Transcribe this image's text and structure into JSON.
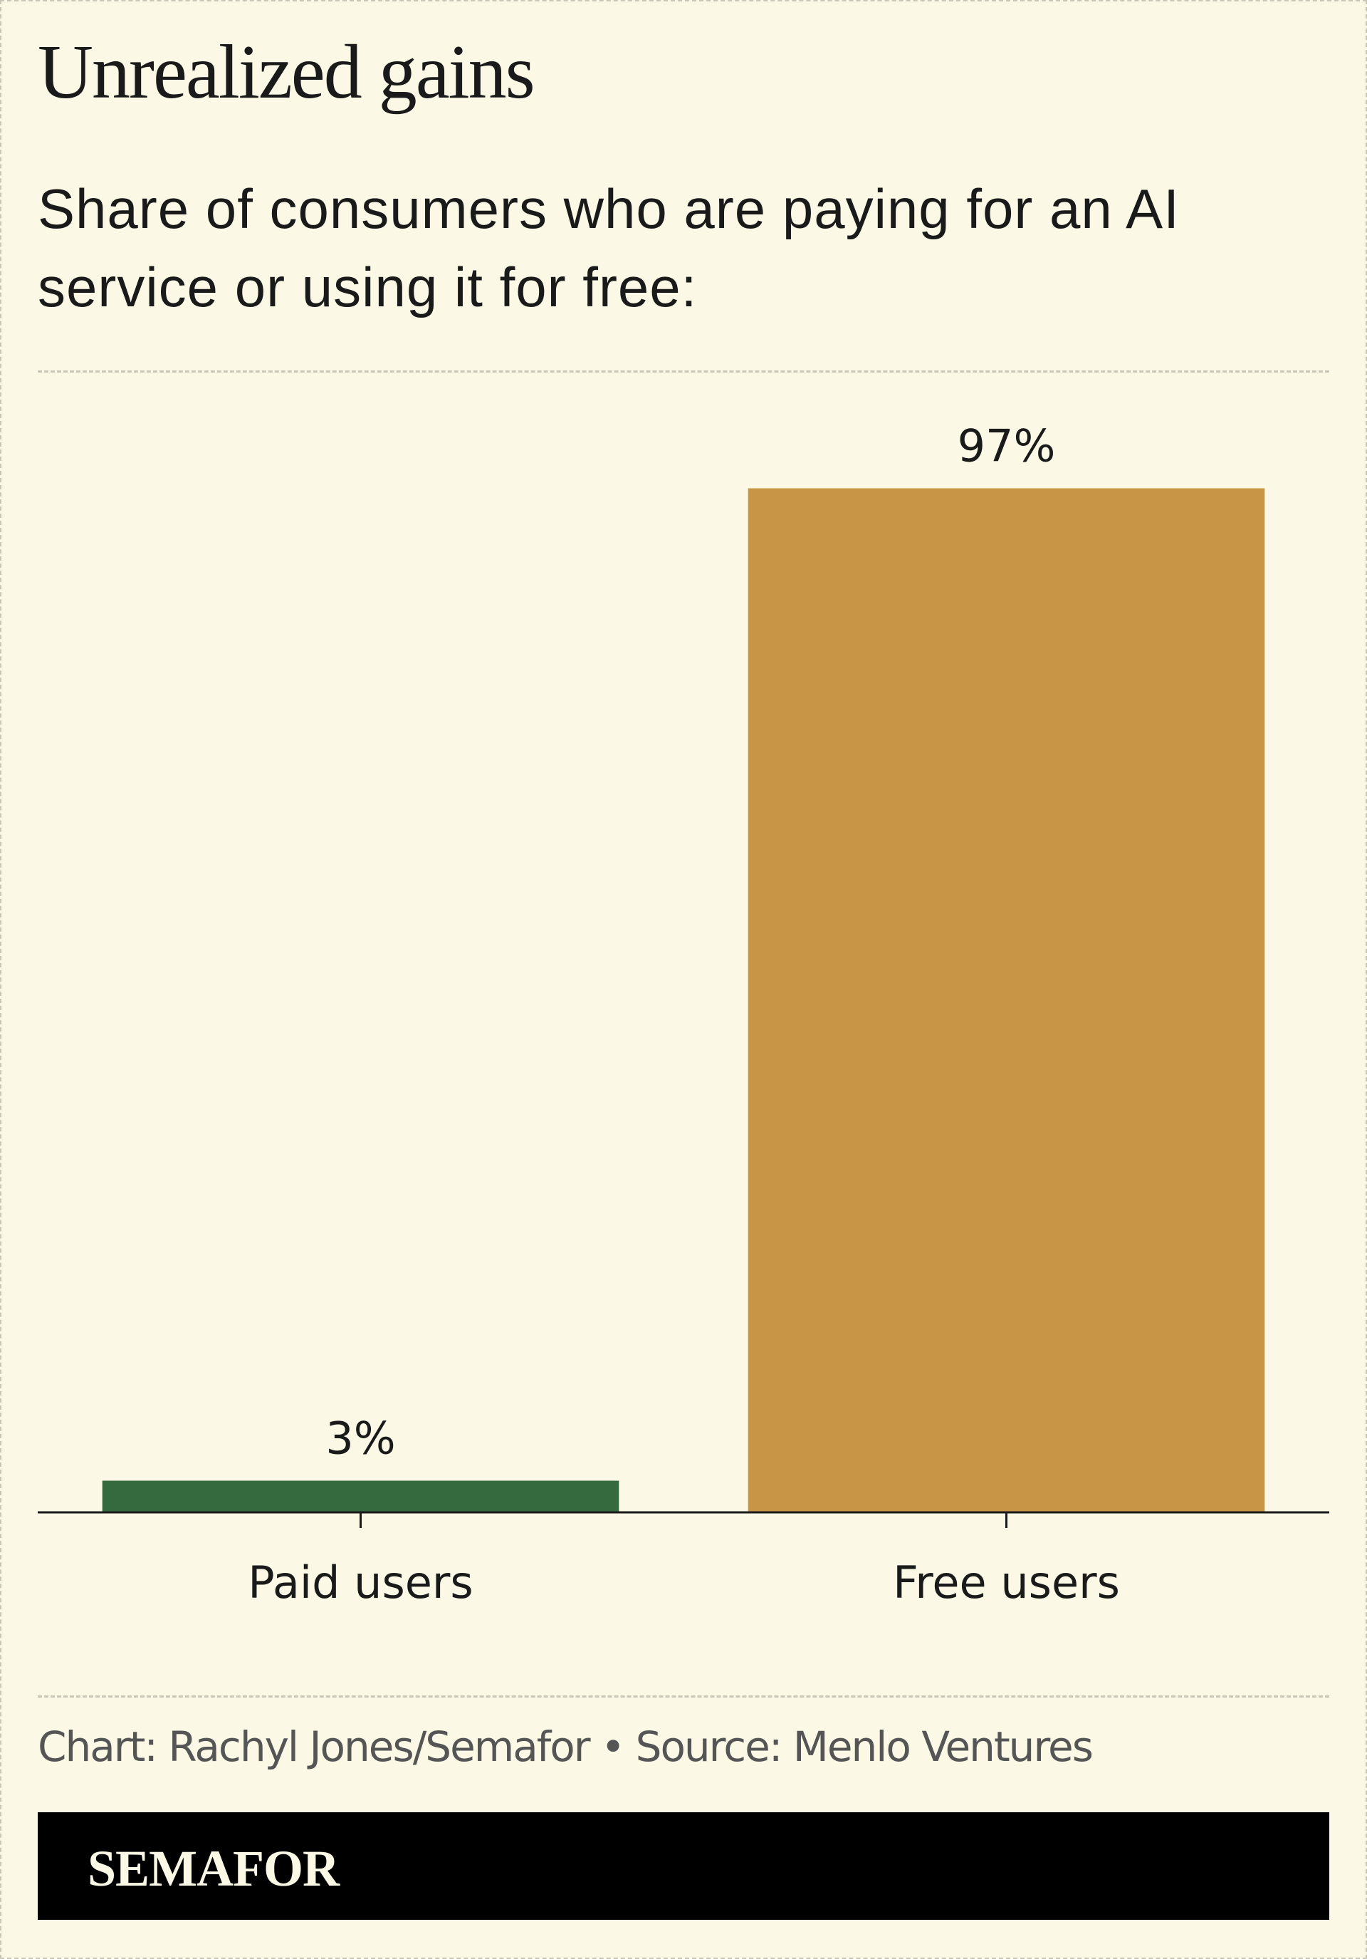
{
  "chart_data": {
    "type": "bar",
    "title": "Unrealized gains",
    "subtitle": "Share of consumers who are paying for an AI service or using it for free:",
    "categories": [
      "Paid users",
      "Free users"
    ],
    "values": [
      3,
      97
    ],
    "value_labels": [
      "3%",
      "97%"
    ],
    "colors": [
      "#356a3f",
      "#c89445"
    ],
    "ylim": [
      0,
      100
    ],
    "grid": false,
    "note": "Chart: Rachyl Jones/Semafor • Source: Menlo Ventures",
    "brand": "SEMAFOR"
  }
}
